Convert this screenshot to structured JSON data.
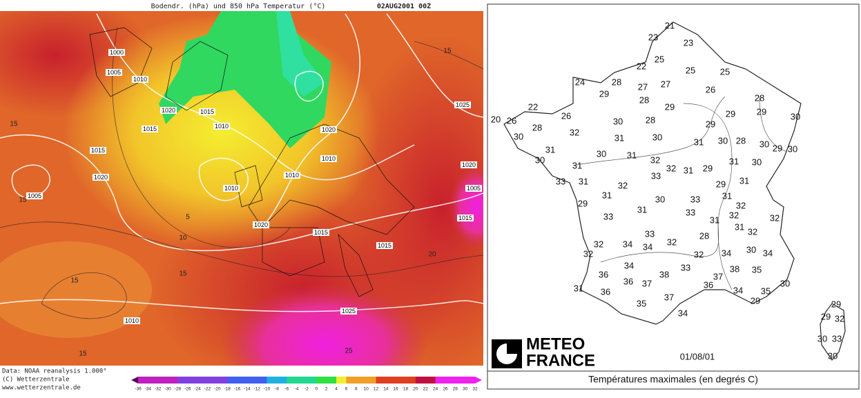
{
  "left_map": {
    "title": "Bodendr. (hPa) und 850 hPa Temperatur (°C)",
    "date": "02AUG2001 00Z",
    "isobar_labels": [
      1000,
      1005,
      1010,
      1020,
      1015,
      1015,
      1010,
      1020,
      1015,
      1010,
      1025,
      1020,
      1010,
      1010,
      1020,
      1005,
      1005,
      1015,
      1020,
      1015,
      1015,
      1025,
      1010
    ],
    "isotherm_labels": [
      15,
      15,
      15,
      5,
      10,
      15,
      15,
      20,
      15,
      25
    ],
    "footer": [
      "Data: NOAA reanalysis 1.000°",
      "(C) Wetterzentrale",
      "www.wetterzentrale.de"
    ],
    "colorbar_ticks": [
      -36,
      -34,
      -32,
      -30,
      -28,
      -26,
      -24,
      -22,
      -20,
      -18,
      -16,
      -14,
      -12,
      -10,
      -8,
      -6,
      -4,
      -2,
      0,
      2,
      4,
      6,
      8,
      10,
      12,
      14,
      16,
      18,
      20,
      22,
      24,
      26,
      28,
      30,
      32
    ]
  },
  "right_map": {
    "temperatures": [
      21,
      23,
      23,
      25,
      22,
      25,
      25,
      24,
      28,
      27,
      27,
      26,
      29,
      28,
      28,
      29,
      22,
      26,
      29,
      29,
      30,
      20,
      26,
      30,
      28,
      29,
      28,
      32,
      31,
      30,
      31,
      30,
      28,
      30,
      29,
      30,
      30,
      31,
      30,
      30,
      31,
      32,
      32,
      31,
      29,
      31,
      30,
      31,
      33,
      31,
      33,
      32,
      29,
      31,
      31,
      31,
      30,
      33,
      29,
      32,
      31,
      33,
      33,
      32,
      32,
      31,
      31,
      32,
      33,
      28,
      32,
      34,
      34,
      32,
      30,
      34,
      32,
      32,
      34,
      34,
      33,
      38,
      35,
      36,
      38,
      37,
      36,
      37,
      36,
      30,
      31,
      36,
      34,
      35,
      37,
      29,
      35,
      34,
      29,
      29,
      32,
      30,
      33,
      30
    ],
    "logo": [
      "METEO",
      "FRANCE"
    ],
    "date": "01/08/01",
    "caption": "Températures maximales (en degrés C)"
  }
}
